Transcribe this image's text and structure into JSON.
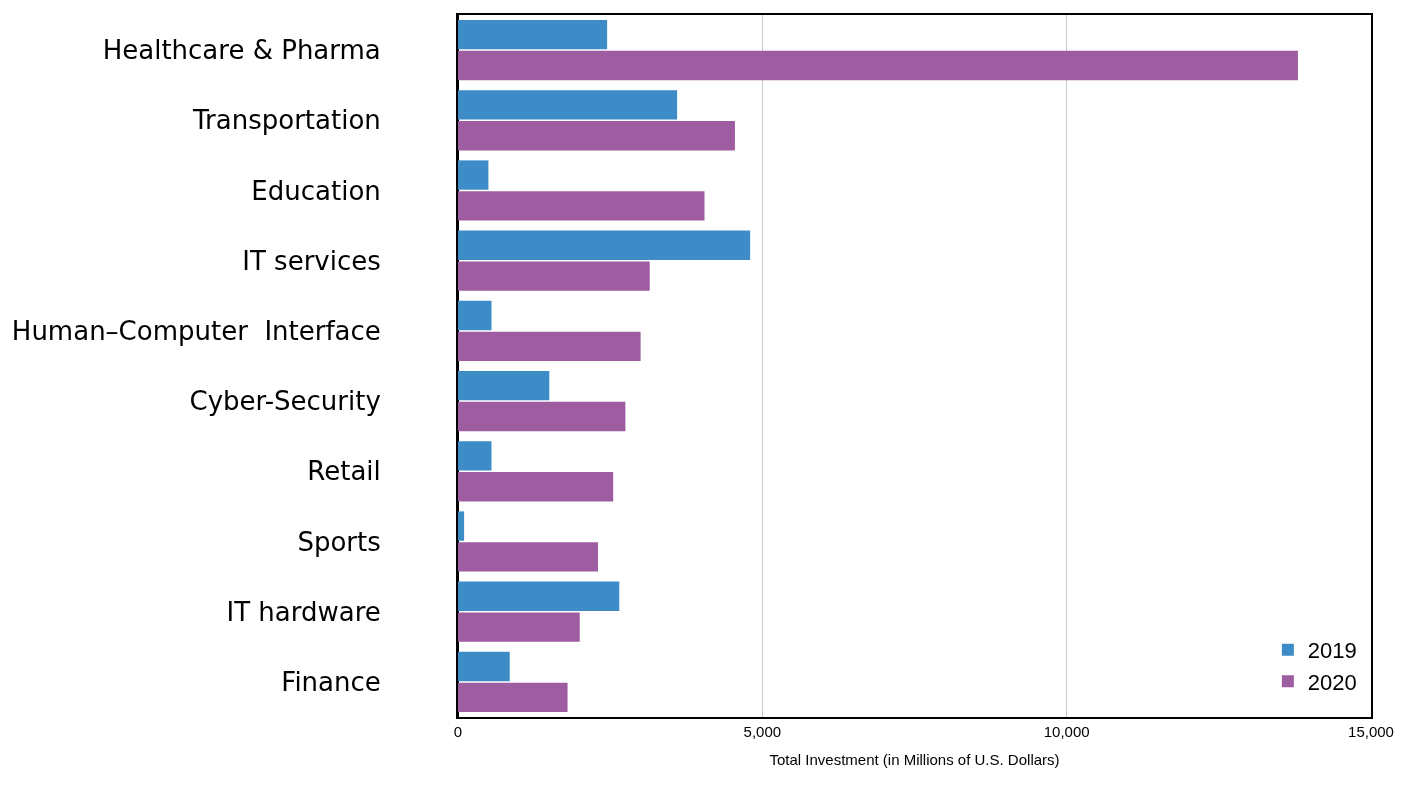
{
  "chart_data": {
    "type": "bar",
    "orientation": "horizontal",
    "xlabel": "Total Investment (in Millions of U.S. Dollars)",
    "categories": [
      "Healthcare & Pharma",
      "Transportation",
      "Education",
      "IT services",
      "Human–Computer  Interface",
      "Cyber-Security",
      "Retail",
      "Sports",
      "IT hardware",
      "Finance"
    ],
    "series": [
      {
        "name": "2019",
        "color": "#3d8cc8",
        "values": [
          2450,
          3600,
          500,
          4800,
          550,
          1500,
          550,
          100,
          2650,
          850
        ]
      },
      {
        "name": "2020",
        "color": "#9e5da0",
        "values": [
          13800,
          4550,
          4050,
          3150,
          3000,
          2750,
          2550,
          2300,
          2000,
          1800
        ]
      }
    ],
    "xlim": [
      0,
      15000
    ],
    "xticks": [
      {
        "value": 0,
        "label": "0"
      },
      {
        "value": 5000,
        "label": "5,000"
      },
      {
        "value": 10000,
        "label": "10,000"
      },
      {
        "value": 15000,
        "label": "15,000"
      }
    ],
    "grid": "x",
    "legend": "bottom right"
  }
}
